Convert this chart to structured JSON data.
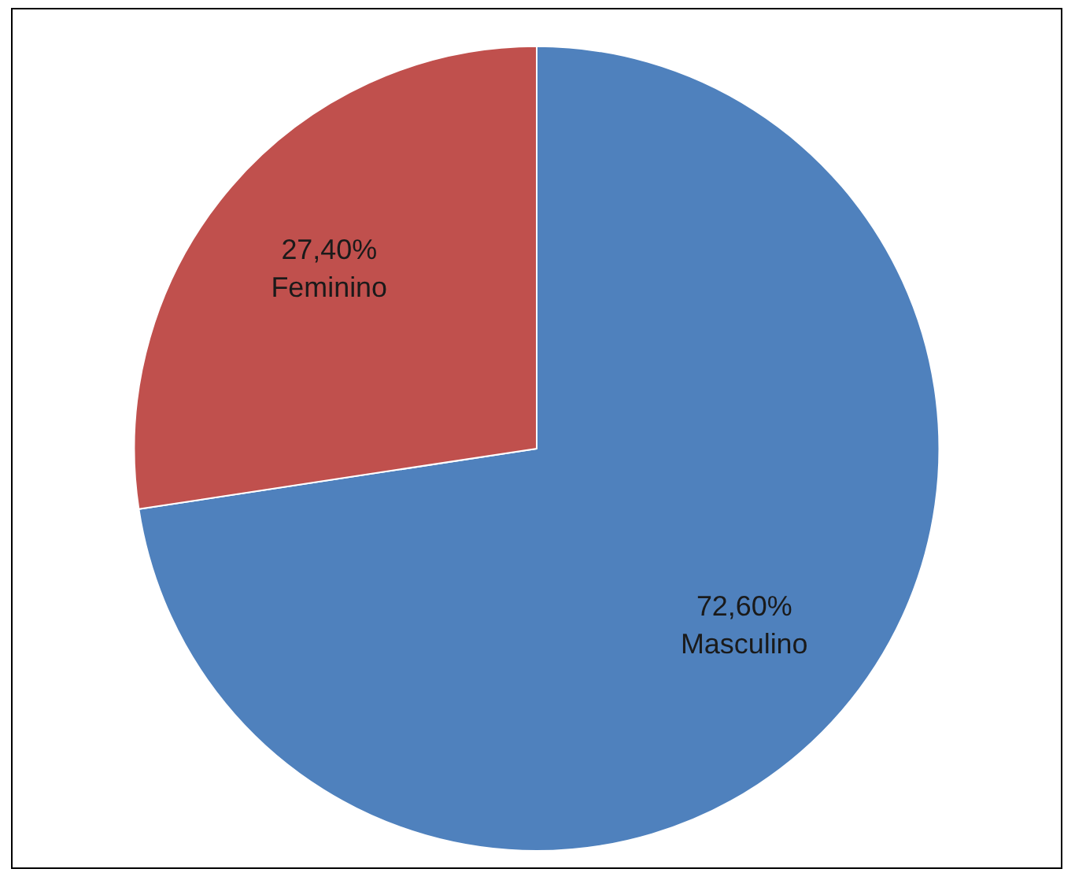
{
  "chart_data": {
    "type": "pie",
    "categories": [
      "Masculino",
      "Feminino"
    ],
    "values": [
      72.6,
      27.4
    ],
    "value_labels": [
      "72,60%",
      "27,40%"
    ],
    "colors": [
      "#4f81bd",
      "#c0504d"
    ],
    "legend": false
  }
}
